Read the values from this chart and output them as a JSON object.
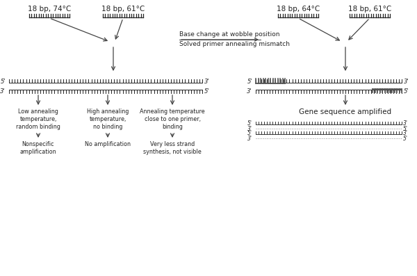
{
  "bg_color": "#ffffff",
  "text_color": "#222222",
  "arrow_color": "#444444",
  "primer_label_left1": "18 bp, 74°C",
  "primer_label_left2": "18 bp, 61°C",
  "primer_label_right1": "18 bp, 64°C",
  "primer_label_right2": "18 bp, 61°C",
  "wobble_line1": "Base change at wobble position",
  "wobble_line2": "Solved primer annealing mismatch",
  "outcome_left1": "Low annealing\ntemperature,\nrandom binding",
  "outcome_left2": "High annealing\ntemperature,\nno binding",
  "outcome_left3": "Annealing temperature\nclose to one primer,\nbinding",
  "result_left1": "Nonspecific\namplification",
  "result_left2": "No amplification",
  "result_left3": "Very less strand\nsynthesis, not visible",
  "outcome_right": "Gene sequence amplified",
  "fs_label": 7.5,
  "fs_small": 6.5,
  "fs_strand": 6.0
}
